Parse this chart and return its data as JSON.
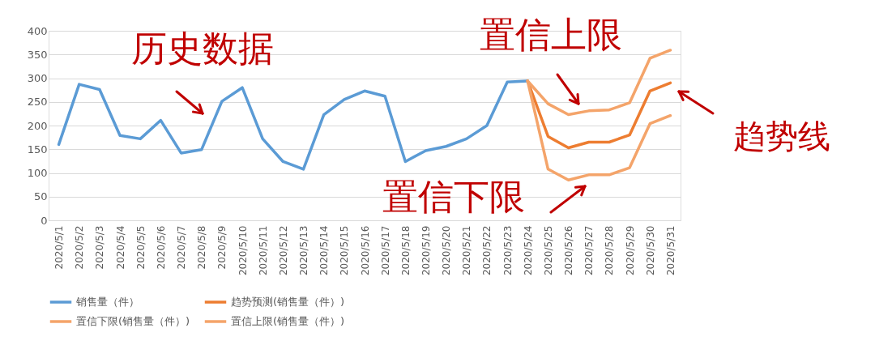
{
  "chart_data": {
    "type": "line",
    "categories": [
      "2020/5/1",
      "2020/5/2",
      "2020/5/3",
      "2020/5/4",
      "2020/5/5",
      "2020/5/6",
      "2020/5/7",
      "2020/5/8",
      "2020/5/9",
      "2020/5/10",
      "2020/5/11",
      "2020/5/12",
      "2020/5/13",
      "2020/5/14",
      "2020/5/15",
      "2020/5/16",
      "2020/5/17",
      "2020/5/18",
      "2020/5/19",
      "2020/5/20",
      "2020/5/21",
      "2020/5/22",
      "2020/5/23",
      "2020/5/24",
      "2020/5/25",
      "2020/5/26",
      "2020/5/27",
      "2020/5/28",
      "2020/5/29",
      "2020/5/30",
      "2020/5/31"
    ],
    "series": [
      {
        "name": "销售量（件）",
        "color": "#5b9bd5",
        "values": [
          160,
          287,
          276,
          179,
          172,
          211,
          142,
          149,
          251,
          280,
          172,
          124,
          108,
          223,
          255,
          273,
          262,
          124,
          147,
          156,
          172,
          200,
          292,
          294,
          null,
          null,
          null,
          null,
          null,
          null,
          null
        ]
      },
      {
        "name": "趋势预测(销售量（件）)",
        "color": "#ed7d31",
        "values": [
          null,
          null,
          null,
          null,
          null,
          null,
          null,
          null,
          null,
          null,
          null,
          null,
          null,
          null,
          null,
          null,
          null,
          null,
          null,
          null,
          null,
          null,
          null,
          294,
          177,
          153,
          165,
          165,
          180,
          273,
          290
        ]
      },
      {
        "name": "置信下限(销售量（件）)",
        "color": "#f4a46a",
        "values": [
          null,
          null,
          null,
          null,
          null,
          null,
          null,
          null,
          null,
          null,
          null,
          null,
          null,
          null,
          null,
          null,
          null,
          null,
          null,
          null,
          null,
          null,
          null,
          294,
          108,
          85,
          96,
          96,
          111,
          204,
          221
        ]
      },
      {
        "name": "置信上限(销售量（件）)",
        "color": "#f4a46a",
        "values": [
          null,
          null,
          null,
          null,
          null,
          null,
          null,
          null,
          null,
          null,
          null,
          null,
          null,
          null,
          null,
          null,
          null,
          null,
          null,
          null,
          null,
          null,
          null,
          294,
          246,
          223,
          231,
          233,
          248,
          342,
          359
        ]
      }
    ],
    "ylim": [
      0,
      400
    ],
    "yticks": [
      0,
      50,
      100,
      150,
      200,
      250,
      300,
      350,
      400
    ],
    "grid": "y",
    "legend": "bottom",
    "line_style": "solid",
    "annotations": [
      "历史数据",
      "置信上限",
      "置信下限",
      "趋势线"
    ]
  }
}
